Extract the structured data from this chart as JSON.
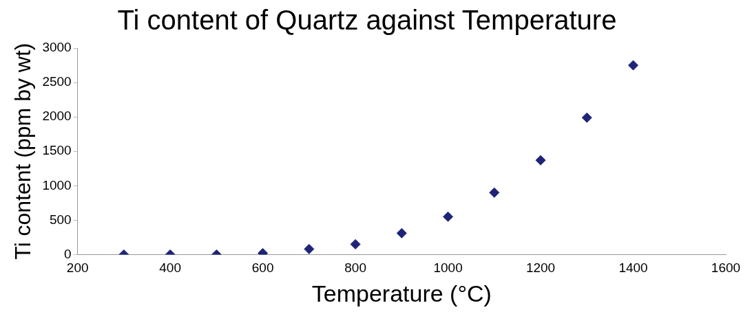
{
  "chart_data": {
    "type": "scatter",
    "title": "Ti content of Quartz against Temperature",
    "xlabel": "Temperature (°C)",
    "ylabel": "Ti content (ppm by wt)",
    "x": [
      300,
      400,
      500,
      600,
      700,
      800,
      900,
      1000,
      1100,
      1200,
      1300,
      1400
    ],
    "series": [
      {
        "color": "#1f2478",
        "values": [
          0,
          0,
          0,
          20,
          80,
          150,
          310,
          550,
          900,
          1370,
          1990,
          2750
        ]
      }
    ],
    "xlim": [
      200,
      1600
    ],
    "xticks": [
      200,
      400,
      600,
      800,
      1000,
      1200,
      1400,
      1600
    ],
    "ylim": [
      0,
      3000
    ],
    "yticks": [
      0,
      500,
      1000,
      1500,
      2000,
      2500,
      3000
    ],
    "grid": false,
    "legend": false,
    "marker": "diamond"
  }
}
